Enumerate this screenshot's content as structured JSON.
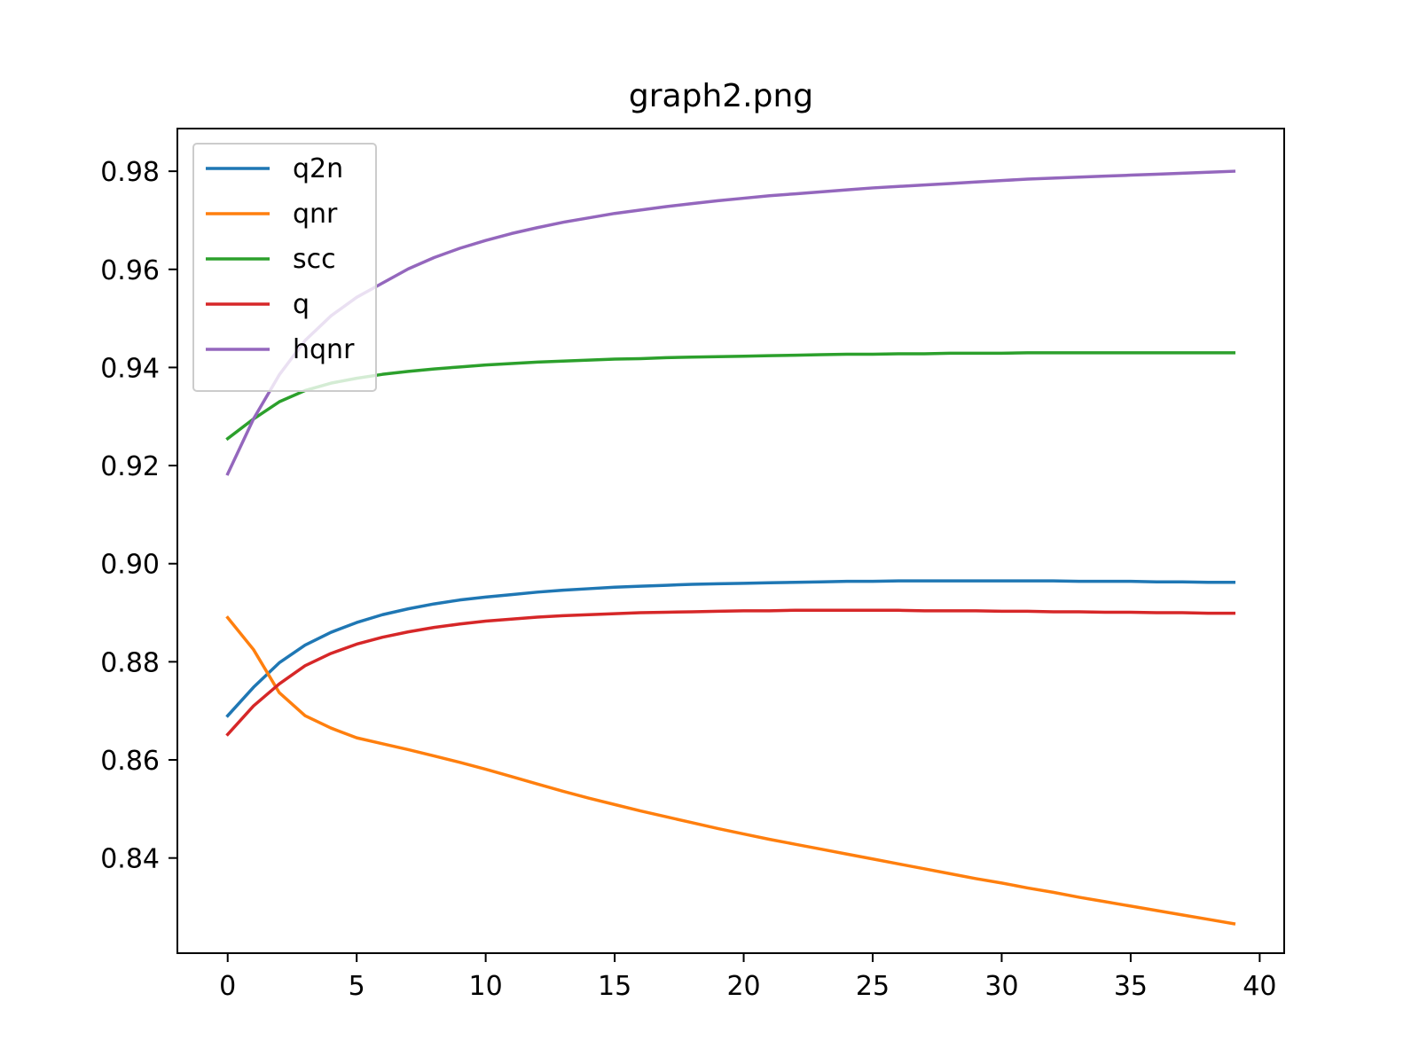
{
  "chart_data": {
    "type": "line",
    "title": "graph2.png",
    "xlabel": "",
    "ylabel": "",
    "xlim": [
      -1.95,
      40.95
    ],
    "ylim": [
      0.8206,
      0.9887
    ],
    "x_ticks": [
      0,
      5,
      10,
      15,
      20,
      25,
      30,
      35,
      40
    ],
    "x_tick_labels": [
      "0",
      "5",
      "10",
      "15",
      "20",
      "25",
      "30",
      "35",
      "40"
    ],
    "y_ticks": [
      0.84,
      0.86,
      0.88,
      0.9,
      0.92,
      0.94,
      0.96,
      0.98
    ],
    "y_tick_labels": [
      "0.84",
      "0.86",
      "0.88",
      "0.90",
      "0.92",
      "0.94",
      "0.96",
      "0.98"
    ],
    "grid": false,
    "legend_position": "upper-left",
    "x": [
      0,
      1,
      2,
      3,
      4,
      5,
      6,
      7,
      8,
      9,
      10,
      11,
      12,
      13,
      14,
      15,
      16,
      17,
      18,
      19,
      20,
      21,
      22,
      23,
      24,
      25,
      26,
      27,
      28,
      29,
      30,
      31,
      32,
      33,
      34,
      35,
      36,
      37,
      38,
      39
    ],
    "series": [
      {
        "name": "q2n",
        "color": "#1f77b4",
        "values": [
          0.869,
          0.8748,
          0.8798,
          0.8834,
          0.886,
          0.888,
          0.8896,
          0.8908,
          0.8918,
          0.8926,
          0.8932,
          0.8937,
          0.8942,
          0.8946,
          0.8949,
          0.8952,
          0.8954,
          0.8956,
          0.8958,
          0.8959,
          0.896,
          0.8961,
          0.8962,
          0.8963,
          0.8964,
          0.8964,
          0.8965,
          0.8965,
          0.8965,
          0.8965,
          0.8965,
          0.8965,
          0.8965,
          0.8964,
          0.8964,
          0.8964,
          0.8963,
          0.8963,
          0.8962,
          0.8962
        ]
      },
      {
        "name": "qnr",
        "color": "#ff7f0e",
        "values": [
          0.889,
          0.8825,
          0.8737,
          0.869,
          0.8665,
          0.8645,
          0.8633,
          0.8621,
          0.8608,
          0.8595,
          0.8581,
          0.8566,
          0.8551,
          0.8536,
          0.8522,
          0.8509,
          0.8496,
          0.8484,
          0.8472,
          0.846,
          0.8449,
          0.8438,
          0.8428,
          0.8418,
          0.8408,
          0.8398,
          0.8388,
          0.8378,
          0.8368,
          0.8358,
          0.8349,
          0.8339,
          0.833,
          0.832,
          0.8311,
          0.8302,
          0.8293,
          0.8284,
          0.8275,
          0.8266
        ]
      },
      {
        "name": "scc",
        "color": "#2ca02c",
        "values": [
          0.9255,
          0.9295,
          0.933,
          0.9353,
          0.9368,
          0.9378,
          0.9386,
          0.9392,
          0.9397,
          0.9401,
          0.9405,
          0.9408,
          0.9411,
          0.9413,
          0.9415,
          0.9417,
          0.9418,
          0.942,
          0.9421,
          0.9422,
          0.9423,
          0.9424,
          0.9425,
          0.9426,
          0.9427,
          0.9427,
          0.9428,
          0.9428,
          0.9429,
          0.9429,
          0.9429,
          0.943,
          0.943,
          0.943,
          0.943,
          0.943,
          0.943,
          0.943,
          0.943,
          0.943
        ]
      },
      {
        "name": "q",
        "color": "#d62728",
        "values": [
          0.8652,
          0.871,
          0.8755,
          0.8792,
          0.8817,
          0.8836,
          0.885,
          0.8861,
          0.887,
          0.8877,
          0.8883,
          0.8887,
          0.8891,
          0.8894,
          0.8896,
          0.8898,
          0.89,
          0.8901,
          0.8902,
          0.8903,
          0.8904,
          0.8904,
          0.8905,
          0.8905,
          0.8905,
          0.8905,
          0.8905,
          0.8904,
          0.8904,
          0.8904,
          0.8903,
          0.8903,
          0.8902,
          0.8902,
          0.8901,
          0.8901,
          0.89,
          0.89,
          0.8899,
          0.8899
        ]
      },
      {
        "name": "hqnr",
        "color": "#9467bd",
        "values": [
          0.9183,
          0.9295,
          0.9385,
          0.9455,
          0.9505,
          0.9543,
          0.9572,
          0.9601,
          0.9624,
          0.9643,
          0.9659,
          0.9673,
          0.9685,
          0.9696,
          0.9705,
          0.9714,
          0.9721,
          0.9728,
          0.9734,
          0.974,
          0.9745,
          0.975,
          0.9754,
          0.9758,
          0.9762,
          0.9766,
          0.9769,
          0.9772,
          0.9775,
          0.9778,
          0.9781,
          0.9784,
          0.9786,
          0.9788,
          0.979,
          0.9792,
          0.9794,
          0.9796,
          0.9798,
          0.98
        ]
      }
    ]
  }
}
